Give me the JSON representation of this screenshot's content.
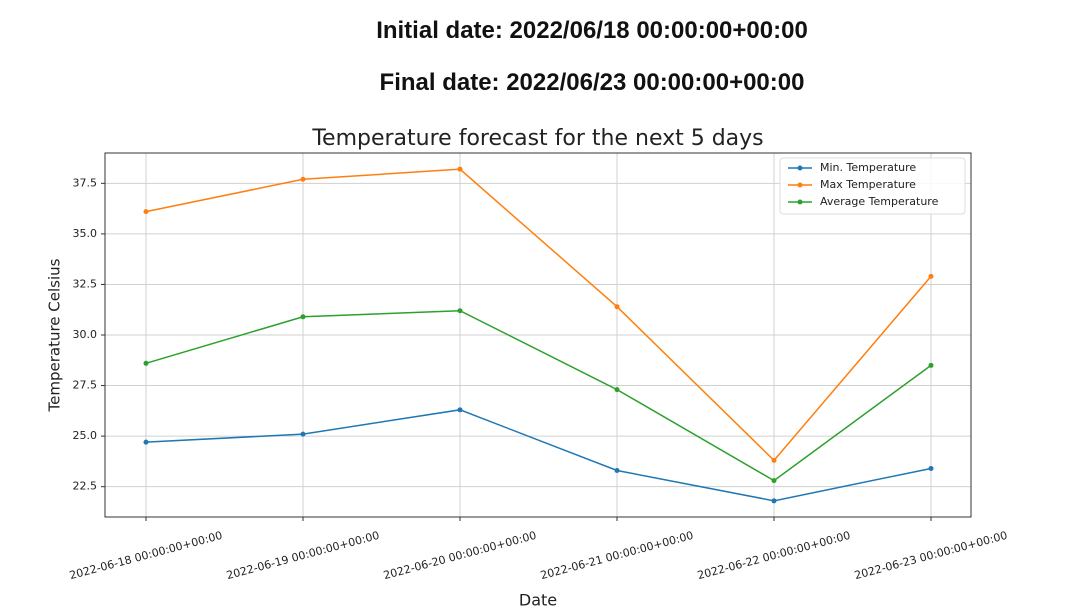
{
  "header": {
    "initial": "Initial date: 2022/06/18 00:00:00+00:00",
    "final": "Final date: 2022/06/23 00:00:00+00:00"
  },
  "chart_data": {
    "type": "line",
    "title": "Temperature forecast for the next 5 days",
    "x_label": "Date",
    "y_label": "Temperature Celsius",
    "categories": [
      "2022-06-18 00:00:00+00:00",
      "2022-06-19 00:00:00+00:00",
      "2022-06-20 00:00:00+00:00",
      "2022-06-21 00:00:00+00:00",
      "2022-06-22 00:00:00+00:00",
      "2022-06-23 00:00:00+00:00"
    ],
    "series": [
      {
        "name": "Min. Temperature",
        "color": "#1f77b4",
        "values": [
          24.7,
          25.1,
          26.3,
          23.3,
          21.8,
          23.4
        ]
      },
      {
        "name": "Max Temperature",
        "color": "#ff7f0e",
        "values": [
          36.1,
          37.7,
          38.2,
          31.4,
          23.8,
          32.9
        ]
      },
      {
        "name": "Average Temperature",
        "color": "#2ca02c",
        "values": [
          28.6,
          30.9,
          31.2,
          27.3,
          22.8,
          28.5
        ]
      }
    ],
    "ylim": [
      21.0,
      39.0
    ],
    "yticks": [
      22.5,
      {
        "value": 25,
        "label": "25.0"
      },
      27.5,
      {
        "value": 30,
        "label": "30.0"
      },
      32.5,
      {
        "value": 35,
        "label": "35.0"
      },
      37.5
    ],
    "grid": true,
    "legend": "upper right"
  }
}
